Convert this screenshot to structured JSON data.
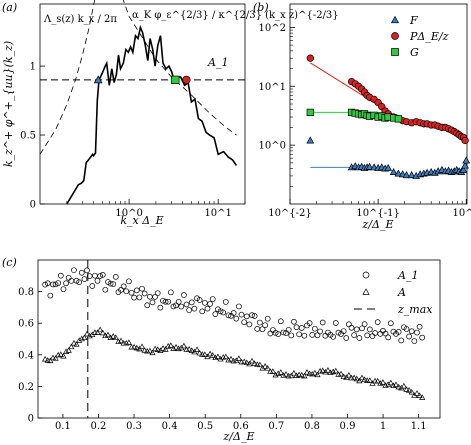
{
  "figure": {
    "panels": [
      "(a)",
      "(b)",
      "(c)"
    ]
  },
  "chart_data": [
    {
      "panel": "(a)",
      "type": "line",
      "xlabel": "k_x Δ_E",
      "ylabel": "k_z^+ φ^+_{uu}(k_z)",
      "xscale": "log",
      "xlim": [
        0.1,
        20
      ],
      "ylim": [
        0,
        1.45
      ],
      "xticks": [
        "10^0",
        "10^1"
      ],
      "yticks": [
        "0",
        "0.5",
        "1"
      ],
      "annotations": [
        "Λ_s(z) k_x / 2π",
        "α_K φ_ε^{2/3} / κ^{2/3} (k_x z)^{-2/3}",
        "A_1"
      ],
      "series": [
        {
          "name": "spectrum",
          "x": [
            0.2,
            0.27,
            0.29,
            0.31,
            0.33,
            0.35,
            0.37,
            0.39,
            0.4,
            0.42,
            0.44,
            0.46,
            0.5,
            0.54,
            0.56,
            0.6,
            0.64,
            0.68,
            0.72,
            0.76,
            0.8,
            0.86,
            0.92,
            0.98,
            1.04,
            1.1,
            1.18,
            1.26,
            1.34,
            1.42,
            1.52,
            1.62,
            1.72,
            1.84,
            1.96,
            2.1,
            2.25,
            2.4,
            2.6,
            2.8,
            3.0,
            3.2,
            3.5,
            3.8,
            4.2,
            4.6,
            5.0,
            5.5,
            6.0,
            6.6,
            7.3,
            8.0,
            9.0,
            10.0,
            11.5,
            13.0,
            14.5,
            16.0
          ],
          "values": [
            0,
            0.14,
            0.15,
            0.17,
            0.3,
            0.32,
            0.34,
            0.36,
            0.35,
            0.37,
            0.75,
            0.9,
            0.95,
            1.0,
            1.02,
            0.86,
            0.98,
            0.88,
            0.94,
            1.08,
            0.98,
            1.02,
            1.12,
            1.1,
            1.14,
            1.1,
            1.22,
            1.2,
            1.28,
            1.24,
            1.15,
            1.04,
            1.2,
            1.12,
            1.0,
            1.15,
            1.22,
            1.02,
            0.98,
            1.0,
            0.96,
            0.9,
            0.92,
            0.92,
            0.86,
            0.88,
            0.74,
            0.76,
            0.62,
            0.6,
            0.52,
            0.5,
            0.48,
            0.36,
            0.38,
            0.34,
            0.32,
            0.28
          ]
        },
        {
          "name": "",
          "style": "dashed",
          "x": [
            0.1,
            0.15,
            0.2,
            0.25,
            0.3,
            0.35,
            0.4,
            0.45
          ],
          "values": [
            0.36,
            0.54,
            0.72,
            0.9,
            1.08,
            1.26,
            1.44,
            1.62
          ]
        },
        {
          "name": "",
          "style": "dashed",
          "x": [
            0.5,
            1,
            2,
            3,
            5,
            8,
            12,
            16
          ],
          "values": [
            1.91,
            1.36,
            1.05,
            0.92,
            0.79,
            0.66,
            0.56,
            0.5
          ]
        }
      ],
      "hlines": [
        {
          "label": "A_1",
          "y": 0.9,
          "style": "dashed"
        }
      ],
      "markers": [
        {
          "x": 0.45,
          "y": 0.9,
          "shape": "triangle",
          "color": "#3b7fc4"
        },
        {
          "x": 3.3,
          "y": 0.9,
          "shape": "square",
          "color": "#2ecc40"
        },
        {
          "x": 4.4,
          "y": 0.9,
          "shape": "circle",
          "color": "#e02020"
        }
      ]
    },
    {
      "panel": "(b)",
      "type": "scatter",
      "xlabel": "z/Δ_E",
      "xscale": "log",
      "yscale": "log",
      "xlim": [
        0.01,
        1.02
      ],
      "ylim": [
        0.1,
        250
      ],
      "xticks": [
        "10^{-2}",
        "10^{-1}",
        "10^0"
      ],
      "yticks": [
        "10^0",
        "10^1",
        "10^2"
      ],
      "legend": "top-right",
      "series": [
        {
          "name": "F",
          "marker": "triangle",
          "color": "#3b7fc4",
          "x": [
            0.017,
            0.05,
            0.055,
            0.06,
            0.065,
            0.07,
            0.075,
            0.08,
            0.09,
            0.1,
            0.11,
            0.12,
            0.13,
            0.15,
            0.17,
            0.19,
            0.21,
            0.24,
            0.27,
            0.3,
            0.33,
            0.36,
            0.4,
            0.44,
            0.48,
            0.53,
            0.58,
            0.63,
            0.68,
            0.73,
            0.78,
            0.83,
            0.88,
            0.93,
            0.97,
            1.0
          ],
          "values": [
            1.2,
            0.42,
            0.44,
            0.42,
            0.43,
            0.41,
            0.42,
            0.43,
            0.42,
            0.41,
            0.42,
            0.4,
            0.41,
            0.35,
            0.33,
            0.32,
            0.31,
            0.31,
            0.3,
            0.32,
            0.33,
            0.34,
            0.35,
            0.34,
            0.36,
            0.38,
            0.36,
            0.37,
            0.35,
            0.36,
            0.38,
            0.36,
            0.35,
            0.38,
            0.45,
            0.55
          ]
        },
        {
          "name": "PΔ_E/z",
          "marker": "circle",
          "color": "#e02020",
          "x": [
            0.017,
            0.05,
            0.055,
            0.06,
            0.065,
            0.07,
            0.075,
            0.08,
            0.09,
            0.1,
            0.11,
            0.12,
            0.13,
            0.15,
            0.17,
            0.19,
            0.21,
            0.24,
            0.27,
            0.3,
            0.33,
            0.36,
            0.4,
            0.44,
            0.48,
            0.53,
            0.58,
            0.63,
            0.68,
            0.73,
            0.78,
            0.83,
            0.88,
            0.93,
            0.97
          ],
          "values": [
            30,
            12,
            11,
            10,
            9,
            8,
            7,
            6.5,
            6,
            5.3,
            4.5,
            3.8,
            3.4,
            3.0,
            2.8,
            2.6,
            2.5,
            2.4,
            2.5,
            2.4,
            2.3,
            2.3,
            2.2,
            2.2,
            2.1,
            2.0,
            2.0,
            1.9,
            1.8,
            1.7,
            1.6,
            1.5,
            1.4,
            1.35,
            1.2
          ]
        },
        {
          "name": "G",
          "marker": "square",
          "color": "#2ecc40",
          "x": [
            0.017,
            0.05,
            0.055,
            0.06,
            0.065,
            0.07,
            0.075,
            0.08,
            0.09,
            0.1,
            0.11,
            0.12,
            0.13,
            0.15,
            0.17
          ],
          "values": [
            3.6,
            3.6,
            3.5,
            3.4,
            3.3,
            3.4,
            3.2,
            3.1,
            3.2,
            3.0,
            3.1,
            2.9,
            3.0,
            2.9,
            2.8
          ]
        }
      ],
      "fit_lines": [
        {
          "color": "#e02020",
          "x": [
            0.017,
            0.2
          ],
          "values": [
            25,
            2.5
          ]
        },
        {
          "color": "#2ecc40",
          "x": [
            0.017,
            0.13
          ],
          "values": [
            3.6,
            3.6
          ]
        },
        {
          "color": "#3b7fc4",
          "x": [
            0.017,
            0.13
          ],
          "values": [
            0.42,
            0.42
          ]
        }
      ]
    },
    {
      "panel": "(c)",
      "type": "scatter",
      "xlabel": "z/Δ_E",
      "xlim": [
        0.03,
        1.16
      ],
      "ylim": [
        0,
        1.0
      ],
      "xticks": [
        "0.1",
        "0.2",
        "0.3",
        "0.4",
        "0.5",
        "0.6",
        "0.7",
        "0.8",
        "0.9",
        "1",
        "1.1"
      ],
      "yticks": [
        "0",
        "0.2",
        "0.4",
        "0.6",
        "0.8"
      ],
      "legend": "top-right",
      "vlines": [
        {
          "label": "z_max",
          "x": 0.17,
          "style": "dashed"
        }
      ],
      "series": [
        {
          "name": "A_1",
          "marker": "circle-open",
          "base": [
            [
              0.05,
              0.82
            ],
            [
              0.1,
              0.86
            ],
            [
              0.15,
              0.9
            ],
            [
              0.2,
              0.88
            ],
            [
              0.25,
              0.84
            ],
            [
              0.3,
              0.8
            ],
            [
              0.35,
              0.75
            ],
            [
              0.4,
              0.74
            ],
            [
              0.45,
              0.72
            ],
            [
              0.5,
              0.72
            ],
            [
              0.55,
              0.68
            ],
            [
              0.6,
              0.65
            ],
            [
              0.65,
              0.6
            ],
            [
              0.7,
              0.55
            ],
            [
              0.75,
              0.56
            ],
            [
              0.8,
              0.56
            ],
            [
              0.85,
              0.54
            ],
            [
              0.9,
              0.55
            ],
            [
              0.95,
              0.55
            ],
            [
              1.0,
              0.55
            ],
            [
              1.05,
              0.54
            ],
            [
              1.11,
              0.53
            ]
          ],
          "amp": 0.05,
          "x_range": [
            0.05,
            1.11
          ],
          "count": 145
        },
        {
          "name": "A",
          "marker": "triangle-open",
          "base": [
            [
              0.05,
              0.36
            ],
            [
              0.1,
              0.4
            ],
            [
              0.15,
              0.5
            ],
            [
              0.2,
              0.55
            ],
            [
              0.25,
              0.5
            ],
            [
              0.3,
              0.45
            ],
            [
              0.35,
              0.42
            ],
            [
              0.4,
              0.45
            ],
            [
              0.45,
              0.44
            ],
            [
              0.5,
              0.4
            ],
            [
              0.55,
              0.38
            ],
            [
              0.6,
              0.36
            ],
            [
              0.65,
              0.34
            ],
            [
              0.7,
              0.28
            ],
            [
              0.75,
              0.27
            ],
            [
              0.8,
              0.28
            ],
            [
              0.85,
              0.3
            ],
            [
              0.9,
              0.26
            ],
            [
              0.95,
              0.24
            ],
            [
              1.0,
              0.22
            ],
            [
              1.05,
              0.2
            ],
            [
              1.11,
              0.13
            ]
          ],
          "amp": 0.012,
          "x_range": [
            0.05,
            1.11
          ],
          "count": 145
        }
      ]
    }
  ]
}
